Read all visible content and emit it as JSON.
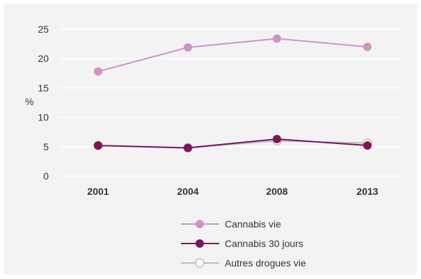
{
  "chart_data": {
    "type": "line",
    "title": "",
    "xlabel": "",
    "ylabel": "%",
    "categories": [
      "2001",
      "2004",
      "2008",
      "2013"
    ],
    "y_ticks": [
      "0",
      "5",
      "10",
      "15",
      "20",
      "25"
    ],
    "ylim": [
      0,
      25
    ],
    "grid": true,
    "legend_position": "bottom-center",
    "series": [
      {
        "name": "Cannabis vie",
        "values": [
          17.8,
          21.9,
          23.4,
          22.0
        ],
        "color": "#cf94c4",
        "marker": "filled-circle"
      },
      {
        "name": "Cannabis 30 jours",
        "values": [
          5.2,
          4.8,
          6.3,
          5.2
        ],
        "color": "#7d1458",
        "marker": "filled-circle"
      },
      {
        "name": "Autres drogues vie",
        "values": [
          5.2,
          4.8,
          6.0,
          5.6
        ],
        "color": "#bdbdbd",
        "marker": "hollow-circle"
      }
    ]
  }
}
